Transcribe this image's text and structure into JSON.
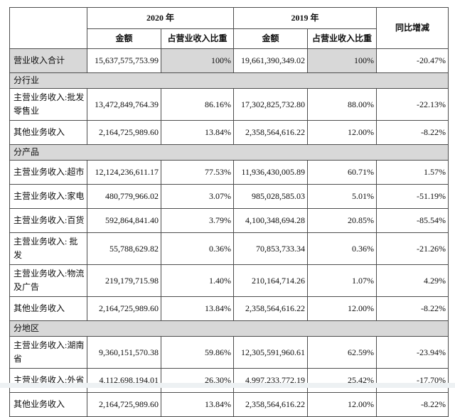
{
  "colors": {
    "row_shading": "#d8d8d8",
    "border": "#4d4d4d"
  },
  "table": {
    "header": {
      "year2020": "2020 年",
      "year2019": "2019 年",
      "yoy": "同比增减",
      "amount": "金额",
      "ratio": "占营业收入比重"
    },
    "rows": [
      {
        "type": "data",
        "shaded": true,
        "label": "营业收入合计",
        "a2020": "15,637,575,753.99",
        "r2020": "100%",
        "a2019": "19,661,390,349.02",
        "r2019": "100%",
        "yoy": "-20.47%"
      },
      {
        "type": "section",
        "label": "分行业"
      },
      {
        "type": "data",
        "label": "主营业务收入:批发零售业",
        "a2020": "13,472,849,764.39",
        "r2020": "86.16%",
        "a2019": "17,302,825,732.80",
        "r2019": "88.00%",
        "yoy": "-22.13%"
      },
      {
        "type": "data",
        "label": "其他业务收入",
        "a2020": "2,164,725,989.60",
        "r2020": "13.84%",
        "a2019": "2,358,564,616.22",
        "r2019": "12.00%",
        "yoy": "-8.22%"
      },
      {
        "type": "section",
        "label": "分产品"
      },
      {
        "type": "data",
        "label": "主营业务收入:超市",
        "a2020": "12,124,236,611.17",
        "r2020": "77.53%",
        "a2019": "11,936,430,005.89",
        "r2019": "60.71%",
        "yoy": "1.57%"
      },
      {
        "type": "data",
        "label": "主营业务收入:家电",
        "a2020": "480,779,966.02",
        "r2020": "3.07%",
        "a2019": "985,028,585.03",
        "r2019": "5.01%",
        "yoy": "-51.19%"
      },
      {
        "type": "data",
        "label": "主营业务收入:百货",
        "a2020": "592,864,841.40",
        "r2020": "3.79%",
        "a2019": "4,100,348,694.28",
        "r2019": "20.85%",
        "yoy": "-85.54%"
      },
      {
        "type": "data",
        "label": "主营业务收入: 批发",
        "a2020": "55,788,629.82",
        "r2020": "0.36%",
        "a2019": "70,853,733.34",
        "r2019": "0.36%",
        "yoy": "-21.26%"
      },
      {
        "type": "data",
        "label": "主营业务收入:物流及广告",
        "a2020": "219,179,715.98",
        "r2020": "1.40%",
        "a2019": "210,164,714.26",
        "r2019": "1.07%",
        "yoy": "4.29%"
      },
      {
        "type": "data",
        "label": "其他业务收入",
        "a2020": "2,164,725,989.60",
        "r2020": "13.84%",
        "a2019": "2,358,564,616.22",
        "r2019": "12.00%",
        "yoy": "-8.22%"
      },
      {
        "type": "section",
        "label": "分地区"
      },
      {
        "type": "data",
        "label": "主营业务收入:湖南省",
        "a2020": "9,360,151,570.38",
        "r2020": "59.86%",
        "a2019": "12,305,591,960.61",
        "r2019": "62.59%",
        "yoy": "-23.94%"
      },
      {
        "type": "data",
        "label": "主营业务收入:外省",
        "a2020": "4,112,698,194.01",
        "r2020": "26.30%",
        "a2019": "4,997,233,772.19",
        "r2019": "25.42%",
        "yoy": "-17.70%"
      },
      {
        "type": "data",
        "label": "其他业务收入",
        "a2020": "2,164,725,989.60",
        "r2020": "13.84%",
        "a2019": "2,358,564,616.22",
        "r2019": "12.00%",
        "yoy": "-8.22%"
      }
    ]
  }
}
